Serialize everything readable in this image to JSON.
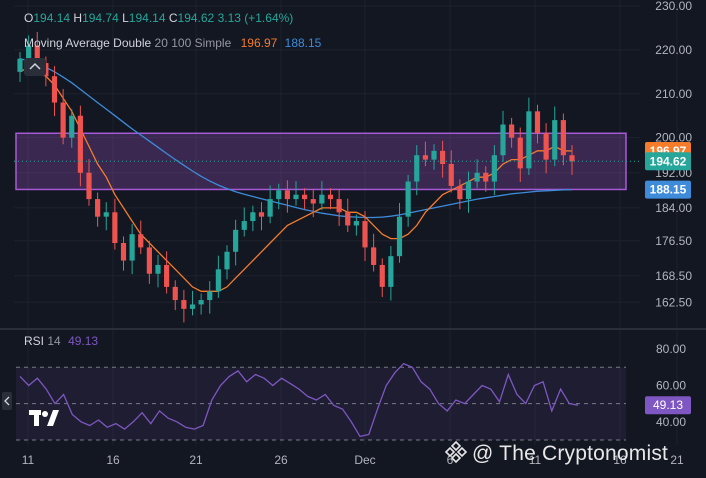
{
  "ohlc": {
    "o_label": "O",
    "o": "194.14",
    "h_label": "H",
    "h": "194.74",
    "l_label": "L",
    "l": "194.14",
    "c_label": "C",
    "c": "194.62",
    "change": "3.13 (+1.64%)"
  },
  "ma_legend": {
    "name": "Moving Average Double",
    "params": "20 100 Simple",
    "fast_value": "196.97",
    "slow_value": "188.15"
  },
  "rsi_legend": {
    "name": "RSI",
    "length": "14",
    "value": "49.13"
  },
  "watermark": "@ The Cryptonomist",
  "colors": {
    "background": "#131722",
    "grid": "#1e222d",
    "up": "#26a69a",
    "down": "#ef5350",
    "ma_fast": "#f57c2b",
    "ma_slow": "#3d8bd9",
    "zone_fill": "#8e4fb0",
    "zone_border": "#a75ad6",
    "rsi_line": "#7e57c2",
    "axis_text": "#b2b5be"
  },
  "icons": {
    "logo": "tradingview-logo",
    "collapse": "chevron-up-icon",
    "side": "chevron-left-icon"
  },
  "chart_data": [
    {
      "type": "candlestick",
      "title": "",
      "xlabel": "",
      "ylabel": "",
      "ylim": [
        158,
        230
      ],
      "y_ticks": [
        "230.00",
        "220.00",
        "210.00",
        "200.00",
        "192.00",
        "184.00",
        "176.50",
        "168.50",
        "162.50"
      ],
      "x_ticks": [
        "11",
        "16",
        "21",
        "26",
        "Dec",
        "6",
        "11",
        "16",
        "21"
      ],
      "price_labels": [
        {
          "value": 196.97,
          "text": "196.97",
          "color": "#f57c2b"
        },
        {
          "value": 194.62,
          "text": "194.62",
          "color": "#26a69a"
        },
        {
          "value": 188.15,
          "text": "188.15",
          "color": "#3d8bd9"
        }
      ],
      "zone": {
        "low": 188.2,
        "high": 201.0,
        "label": ""
      },
      "closes": [
        218,
        221,
        217,
        214,
        208,
        200,
        205,
        192,
        186,
        182,
        183,
        176,
        172,
        178,
        175,
        169,
        171,
        166,
        163,
        161,
        162,
        163,
        165,
        170,
        174,
        179,
        181,
        183,
        182,
        186,
        188,
        186,
        187,
        186,
        185,
        187,
        186,
        183,
        180,
        181,
        175,
        171,
        166,
        173,
        182,
        190,
        196,
        195,
        197,
        194,
        189,
        186,
        190,
        192,
        190,
        196,
        203,
        200,
        193,
        206,
        201,
        195,
        204,
        196,
        194.62
      ],
      "ma_fast": [
        215,
        216,
        215,
        214,
        212,
        209,
        206,
        202,
        198,
        194,
        191,
        187,
        184,
        181,
        178,
        176,
        174,
        172,
        170,
        168,
        166,
        165,
        165,
        165,
        166,
        168,
        170,
        172,
        174,
        176,
        178,
        180,
        181,
        182,
        183,
        184,
        184,
        184,
        183,
        183,
        182,
        180,
        178,
        177,
        177,
        178,
        180,
        183,
        185,
        187,
        188,
        189,
        190,
        191,
        191,
        192,
        194,
        195,
        195,
        196,
        197,
        197,
        198,
        197,
        196.97
      ],
      "ma_slow": [
        218,
        217.5,
        216.8,
        216,
        215,
        213.8,
        212.5,
        211,
        209.5,
        208,
        206.5,
        205,
        203.5,
        202,
        200.6,
        199.2,
        197.8,
        196.4,
        195,
        193.7,
        192.4,
        191.2,
        190.1,
        189.2,
        188.4,
        187.7,
        187.1,
        186.6,
        186.1,
        185.6,
        185.1,
        184.6,
        184.1,
        183.6,
        183.2,
        182.8,
        182.5,
        182.2,
        182,
        181.9,
        181.8,
        181.8,
        181.9,
        182.1,
        182.4,
        182.8,
        183.2,
        183.6,
        184,
        184.4,
        184.8,
        185.2,
        185.6,
        186,
        186.3,
        186.6,
        186.9,
        187.2,
        187.4,
        187.6,
        187.8,
        187.9,
        188,
        188.1,
        188.15
      ]
    },
    {
      "type": "line",
      "title": "",
      "ylim": [
        30,
        85
      ],
      "y_ticks": [
        "80.00",
        "60.00",
        "40.00"
      ],
      "levels": [
        70,
        50,
        30
      ],
      "value_label": "49.13",
      "series": [
        {
          "values": [
            65,
            60,
            64,
            58,
            50,
            55,
            44,
            40,
            38,
            41,
            37,
            39,
            36,
            40,
            45,
            39,
            46,
            42,
            40,
            37,
            36,
            38,
            52,
            60,
            65,
            68,
            62,
            66,
            64,
            60,
            64,
            61,
            58,
            54,
            52,
            55,
            49,
            47,
            40,
            32,
            33,
            47,
            60,
            67,
            72,
            70,
            62,
            58,
            50,
            46,
            52,
            50,
            55,
            60,
            58,
            51,
            66,
            55,
            50,
            60,
            62,
            46,
            58,
            50,
            49.13
          ]
        }
      ]
    }
  ]
}
